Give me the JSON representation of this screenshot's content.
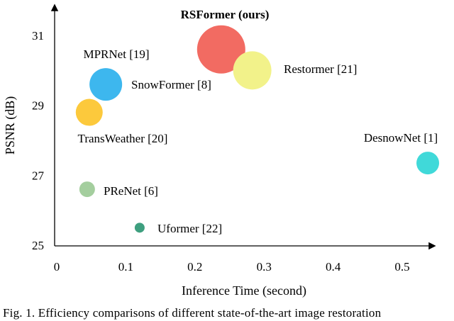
{
  "chart_data": {
    "type": "scatter",
    "xlabel": "Inference Time (second)",
    "ylabel": "PSNR (dB)",
    "xlim": [
      0,
      0.55
    ],
    "ylim": [
      25,
      32
    ],
    "xticks": [
      "0",
      "0.1",
      "0.2",
      "0.3",
      "0.4",
      "0.5"
    ],
    "yticks": [
      "25",
      "27",
      "29",
      "31"
    ],
    "grid": false,
    "points": [
      {
        "label": "RSFormer (ours)",
        "x": 0.238,
        "y": 30.6,
        "size": 34,
        "color": "#F26B62",
        "bold": true
      },
      {
        "label": "Restormer [21]",
        "x": 0.283,
        "y": 30.0,
        "size": 27,
        "color": "#F2F28A",
        "bold": false
      },
      {
        "label": "MPRNet [19]",
        "x": 0.071,
        "y": 29.6,
        "size": 23,
        "color": "#3DB7EE",
        "bold": false
      },
      {
        "label": "SnowFormer [8]",
        "x": 0.071,
        "y": 29.6,
        "size": 0,
        "color": "#3DB7EE",
        "bold": false
      },
      {
        "label": "TransWeather [20]",
        "x": 0.047,
        "y": 28.8,
        "size": 19,
        "color": "#FCC93C",
        "bold": false
      },
      {
        "label": "DesnowNet [1]",
        "x": 0.537,
        "y": 27.35,
        "size": 16,
        "color": "#40D9D9",
        "bold": false
      },
      {
        "label": "PReNet [6]",
        "x": 0.044,
        "y": 26.6,
        "size": 11,
        "color": "#A4CE9E",
        "bold": false
      },
      {
        "label": "Uformer [22]",
        "x": 0.12,
        "y": 25.5,
        "size": 7,
        "color": "#3E9F7F",
        "bold": false
      }
    ]
  },
  "caption": "Fig. 1.  Efficiency comparisons of different state-of-the-art image restoration"
}
